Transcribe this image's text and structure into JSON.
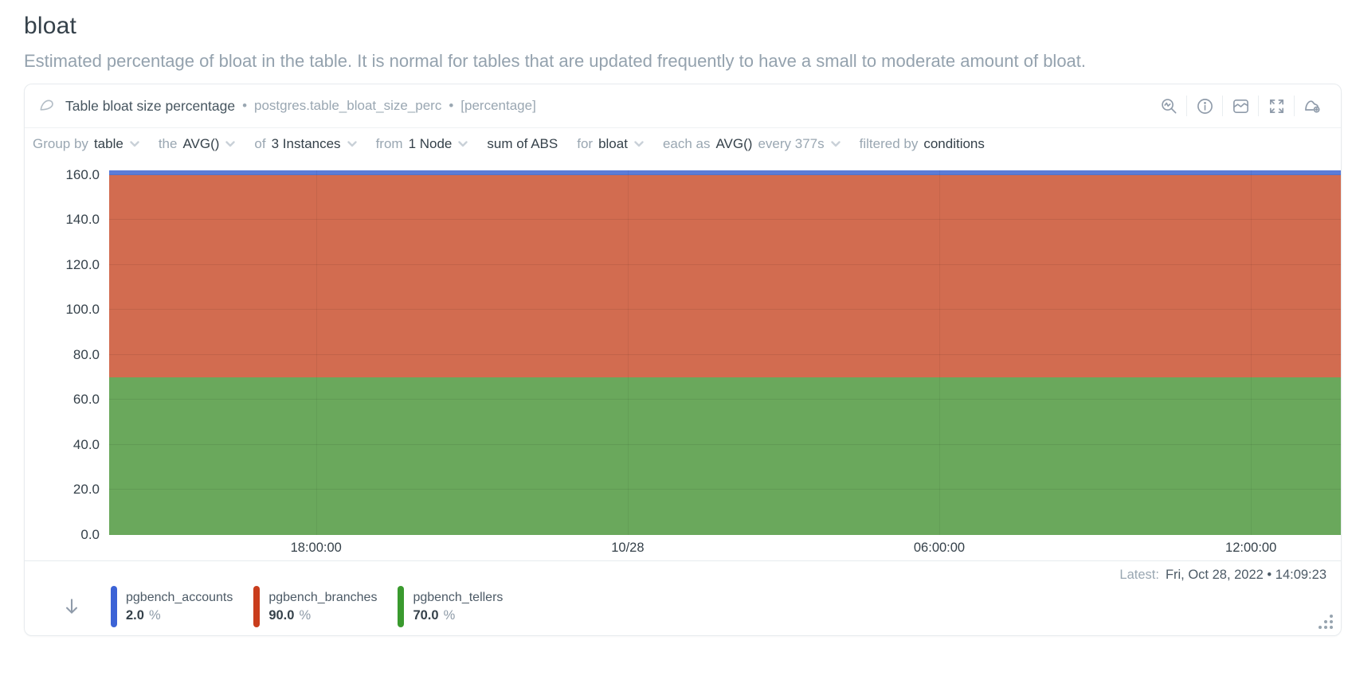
{
  "page": {
    "title": "bloat",
    "description": "Estimated percentage of bloat in the table. It is normal for tables that are updated frequently to have a small to moderate amount of bloat."
  },
  "chart_card": {
    "header": {
      "title": "Table bloat size percentage",
      "separator": "•",
      "context": "postgres.table_bloat_size_perc",
      "units_badge": "[percentage]",
      "icons": [
        "zoom-chart",
        "information",
        "chart-type",
        "fullscreen",
        "add-to-dashboard"
      ]
    },
    "toolbar": {
      "items": [
        {
          "label": "Group by",
          "value": "table",
          "suffix": "",
          "chevron": true
        },
        {
          "label": "the",
          "value": "AVG()",
          "suffix": "",
          "chevron": true
        },
        {
          "label": "of",
          "value": "3 Instances",
          "suffix": "",
          "chevron": true
        },
        {
          "label": "from",
          "value": "1 Node",
          "suffix": "",
          "chevron": true
        },
        {
          "label": "",
          "value": "sum of ABS",
          "suffix": "",
          "chevron": false
        },
        {
          "label": "for",
          "value": "bloat",
          "suffix": "",
          "chevron": true
        },
        {
          "label": "each as",
          "value": "AVG()",
          "suffix": "every 377s",
          "chevron": true
        },
        {
          "label": "filtered by",
          "value": "conditions",
          "suffix": "",
          "chevron": false
        }
      ]
    },
    "footer": {
      "latest_label": "Latest:",
      "latest_value": "Fri, Oct 28, 2022 • 14:09:23",
      "sort_icon": "arrow-down"
    }
  },
  "chart_data": {
    "type": "area",
    "stacked": true,
    "title": "Table bloat size percentage",
    "ylabel": "percentage",
    "ylim": [
      0,
      162
    ],
    "y_ticks": [
      160,
      140,
      120,
      100,
      80,
      60,
      40,
      20,
      0
    ],
    "x_ticks": [
      "18:00:00",
      "10/28",
      "06:00:00",
      "12:00:00"
    ],
    "x_tick_positions_pct": [
      16.8,
      42.1,
      67.4,
      92.7
    ],
    "grid": true,
    "legend_position": "bottom",
    "series": [
      {
        "name": "pgbench_accounts",
        "value": 2.0,
        "unit": "%",
        "area_color": "#5b7cd8",
        "legend_color": "#3c63d6"
      },
      {
        "name": "pgbench_branches",
        "value": 90.0,
        "unit": "%",
        "area_color": "#d26c50",
        "legend_color": "#c93d1c"
      },
      {
        "name": "pgbench_tellers",
        "value": 70.0,
        "unit": "%",
        "area_color": "#6aa85c",
        "legend_color": "#3a9a2e"
      }
    ],
    "note": "Values are constant across the whole time window; stack order top-to-bottom: accounts, branches, tellers."
  },
  "colors": {
    "title_text": "#35414a",
    "muted_text": "#9aa7b2",
    "icon_gray": "#8f9baa",
    "card_border": "#e7ebee"
  }
}
